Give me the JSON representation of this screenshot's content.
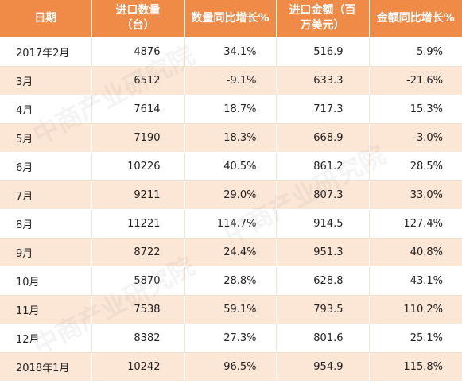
{
  "table": {
    "headers": [
      {
        "line1": "日期",
        "line2": ""
      },
      {
        "line1": "进口数量",
        "line2": "（台）"
      },
      {
        "line1": "数量同比增长%",
        "line2": ""
      },
      {
        "line1": "进口金额（百",
        "line2": "万美元）"
      },
      {
        "line1": "金额同比增长%",
        "line2": ""
      }
    ],
    "rows": [
      {
        "month": "2017年2月",
        "quantity": "4876",
        "qty_yoy": "34.1%",
        "amount": "516.9",
        "amt_yoy": "5.9%"
      },
      {
        "month": "3月",
        "quantity": "6512",
        "qty_yoy": "-9.1%",
        "amount": "633.3",
        "amt_yoy": "-21.6%"
      },
      {
        "month": "4月",
        "quantity": "7614",
        "qty_yoy": "18.7%",
        "amount": "717.3",
        "amt_yoy": "15.3%"
      },
      {
        "month": "5月",
        "quantity": "7190",
        "qty_yoy": "18.3%",
        "amount": "668.9",
        "amt_yoy": "-3.0%"
      },
      {
        "month": "6月",
        "quantity": "10226",
        "qty_yoy": "40.5%",
        "amount": "861.2",
        "amt_yoy": "28.5%"
      },
      {
        "month": "7月",
        "quantity": "9211",
        "qty_yoy": "29.0%",
        "amount": "807.3",
        "amt_yoy": "33.0%"
      },
      {
        "month": "8月",
        "quantity": "11221",
        "qty_yoy": "114.7%",
        "amount": "914.5",
        "amt_yoy": "127.4%"
      },
      {
        "month": "9月",
        "quantity": "8722",
        "qty_yoy": "24.4%",
        "amount": "951.3",
        "amt_yoy": "40.8%"
      },
      {
        "month": "10月",
        "quantity": "5870",
        "qty_yoy": "28.8%",
        "amount": "628.8",
        "amt_yoy": "43.1%"
      },
      {
        "month": "11月",
        "quantity": "7538",
        "qty_yoy": "59.1%",
        "amount": "793.5",
        "amt_yoy": "110.2%"
      },
      {
        "month": "12月",
        "quantity": "8382",
        "qty_yoy": "27.3%",
        "amount": "801.6",
        "amt_yoy": "25.1%"
      },
      {
        "month": "2018年1月",
        "quantity": "10242",
        "qty_yoy": "96.5%",
        "amount": "954.9",
        "amt_yoy": "115.8%"
      }
    ]
  },
  "watermark": "中商产业研究院",
  "colors": {
    "header_bg": "#f08a47",
    "header_text": "#ffffff",
    "row_alt_bg": "#fce6d5",
    "row_bg": "#ffffff",
    "text": "#222222"
  }
}
